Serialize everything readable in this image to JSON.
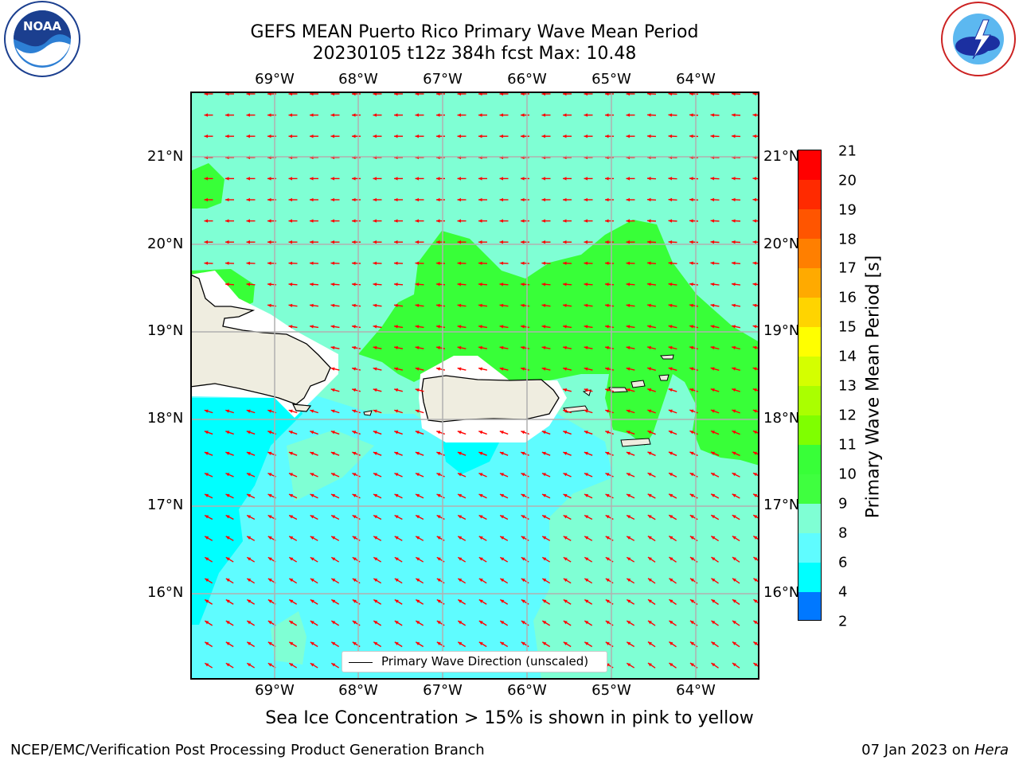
{
  "title": {
    "line1": "GEFS MEAN Puerto Rico Primary Wave Mean Period",
    "line2": "20230105 t12z 384h fcst   Max: 10.48"
  },
  "logos": {
    "left": "NOAA",
    "left_ring": "NATIONAL OCEANIC AND ATMOSPHERIC ADMINISTRATION · U.S. DEPARTMENT OF COMMERCE",
    "right_ring": "NATIONAL WEATHER SERVICE"
  },
  "map": {
    "lon_labels": [
      "69°W",
      "68°W",
      "67°W",
      "66°W",
      "65°W",
      "64°W"
    ],
    "lat_labels": [
      "21°N",
      "20°N",
      "19°N",
      "18°N",
      "17°N",
      "16°N"
    ],
    "legend_label": "Primary Wave Direction (unscaled)",
    "colors": {
      "aquamarine": "#7fffd4",
      "cyan_light": "#5ffcff",
      "cyan": "#00ffff",
      "green": "#38ff38",
      "land": "#efede0",
      "arrow": "#ff0000"
    }
  },
  "colorbar": {
    "label": "Primary Wave Mean Period [s]",
    "ticks": [
      "21",
      "20",
      "19",
      "18",
      "17",
      "16",
      "15",
      "14",
      "13",
      "12",
      "11",
      "10",
      "9",
      "8",
      "6",
      "4",
      "2"
    ],
    "colors": [
      "#ff0000",
      "#ff2a00",
      "#ff5500",
      "#ff7f00",
      "#ffaa00",
      "#ffd400",
      "#ffff00",
      "#d4ff00",
      "#aaff00",
      "#7fff00",
      "#38ff38",
      "#3fff3f",
      "#7fffd4",
      "#5ffcff",
      "#00ffff",
      "#0078ff",
      "#0000ff"
    ]
  },
  "sea_ice_note": "Sea Ice Concentration > 15% is shown in pink to yellow",
  "footer": {
    "left": "NCEP/EMC/Verification Post Processing Product Generation Branch",
    "date": "07 Jan 2023 on ",
    "machine": "Hera"
  }
}
